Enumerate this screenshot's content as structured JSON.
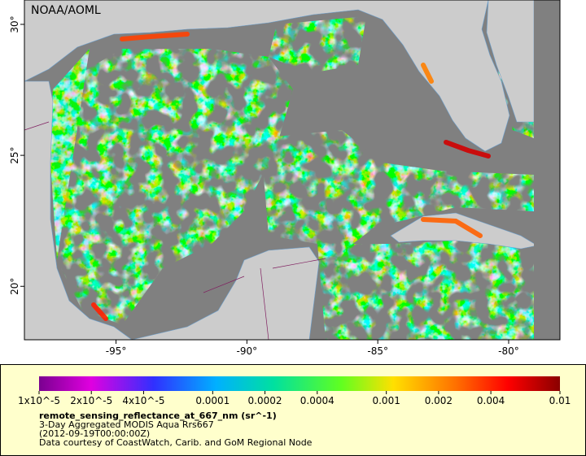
{
  "map": {
    "credit": "NOAA/AOML",
    "xlim": [
      -98.5,
      -78.04
    ],
    "ylim": [
      17.96,
      30.93
    ],
    "xticks": [
      {
        "value": -95,
        "label": "-95°"
      },
      {
        "value": -90,
        "label": "-90°"
      },
      {
        "value": -85,
        "label": "-85°"
      },
      {
        "value": -80,
        "label": "-80°"
      }
    ],
    "yticks": [
      {
        "value": 20,
        "label": "20°"
      },
      {
        "value": 25,
        "label": "25°"
      },
      {
        "value": 30,
        "label": "30°"
      }
    ],
    "colorbar": {
      "scale": "log",
      "lim": [
        1e-05,
        0.01
      ],
      "ticks": [
        {
          "value": 1e-05,
          "label": "1x10^-5"
        },
        {
          "value": 2e-05,
          "label": "2x10^-5"
        },
        {
          "value": 4e-05,
          "label": "4x10^-5"
        },
        0.0001,
        0.0002,
        0.0004,
        0.001,
        0.002,
        0.004,
        0.01
      ]
    },
    "caption": {
      "title": "remote_sensing_reflectance_at_667_nm (sr^-1)",
      "lines": [
        "3-Day Aggregated MODIS Aqua Rrs667",
        "(2012-09-19T00:00:00Z)",
        "Data courtesy of CoastWatch, Carib. and GoM Regional Node"
      ]
    }
  }
}
